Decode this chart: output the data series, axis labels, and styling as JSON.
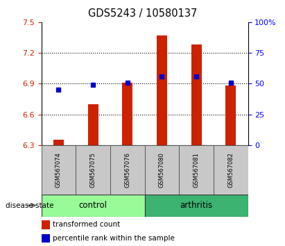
{
  "title": "GDS5243 / 10580137",
  "samples": [
    "GSM567074",
    "GSM567075",
    "GSM567076",
    "GSM567080",
    "GSM567081",
    "GSM567082"
  ],
  "red_values": [
    6.35,
    6.7,
    6.91,
    7.37,
    7.28,
    6.88
  ],
  "blue_values_left": [
    6.84,
    6.89,
    6.91,
    6.97,
    6.97,
    6.91
  ],
  "y_min": 6.3,
  "y_max": 7.5,
  "y_ticks_left": [
    6.3,
    6.6,
    6.9,
    7.2,
    7.5
  ],
  "y_ticks_right": [
    0,
    25,
    50,
    75,
    100
  ],
  "grid_lines": [
    6.6,
    6.9,
    7.2
  ],
  "control_color": "#98FB98",
  "arthritis_color": "#3CB371",
  "bar_color": "#CC2200",
  "dot_color": "#0000CC",
  "bar_width": 0.3,
  "sample_box_color": "#C8C8C8",
  "legend_red_label": "transformed count",
  "legend_blue_label": "percentile rank within the sample"
}
